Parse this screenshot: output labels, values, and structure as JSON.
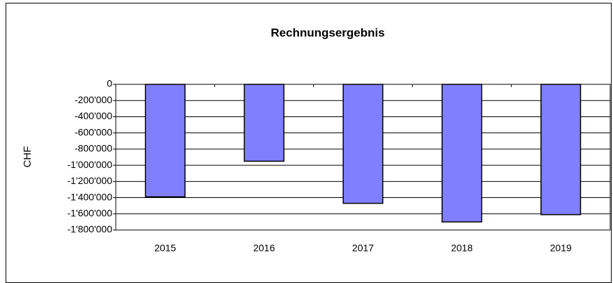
{
  "chart_data": {
    "type": "bar",
    "title": "Rechnungsergebnis",
    "y_label": "CHF",
    "categories": [
      "2015",
      "2016",
      "2017",
      "2018",
      "2019"
    ],
    "values": [
      -1390000,
      -950000,
      -1470000,
      -1700000,
      -1610000
    ],
    "color": "#8080ff",
    "ylim": [
      -1800000,
      0
    ],
    "yticks": [
      0,
      {
        "value": -200000,
        "label": "-200'000"
      },
      {
        "value": -400000,
        "label": "-400'000"
      },
      {
        "value": -600000,
        "label": "-600'000"
      },
      {
        "value": -800000,
        "label": "-800'000"
      },
      {
        "value": -1000000,
        "label": "-1'000'000"
      },
      {
        "value": -1200000,
        "label": "-1'200'000"
      },
      {
        "value": -1400000,
        "label": "-1'400'000"
      },
      {
        "value": -1600000,
        "label": "-1'600'000"
      },
      {
        "value": -1800000,
        "label": "-1'800'000"
      }
    ],
    "grid": true
  }
}
